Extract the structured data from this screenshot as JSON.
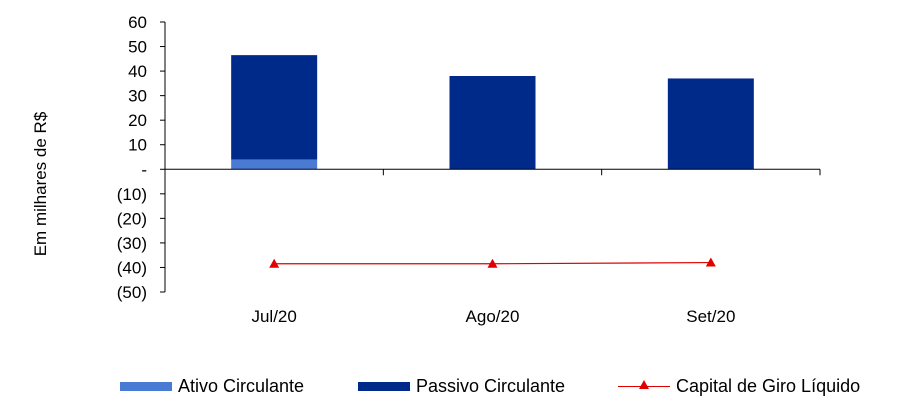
{
  "chart_data": {
    "type": "bar",
    "stacked": true,
    "categories": [
      "Jul/20",
      "Ago/20",
      "Set/20"
    ],
    "series": [
      {
        "name": "Ativo Circulante",
        "kind": "bar",
        "color": "#4a7bd4",
        "values": [
          4,
          0,
          0
        ]
      },
      {
        "name": "Passivo Circulante",
        "kind": "bar",
        "color": "#002a8a",
        "values": [
          42.5,
          38,
          37
        ]
      },
      {
        "name": "Capital de Giro Líquido",
        "kind": "line",
        "color": "#e00000",
        "marker": "triangle",
        "values": [
          -38.5,
          -38.5,
          -38
        ]
      }
    ],
    "ylabel": "Em milhares de R$",
    "ylim": [
      -50,
      60
    ],
    "yticks": [
      60,
      50,
      40,
      30,
      20,
      10,
      0,
      -10,
      -20,
      -30,
      -40,
      -50
    ],
    "ytick_labels": [
      "60",
      "50",
      "40",
      "30",
      "20",
      "10",
      "-",
      "(10)",
      "(20)",
      "(30)",
      "(40)",
      "(50)"
    ],
    "grid": false,
    "legend": "bottom"
  }
}
